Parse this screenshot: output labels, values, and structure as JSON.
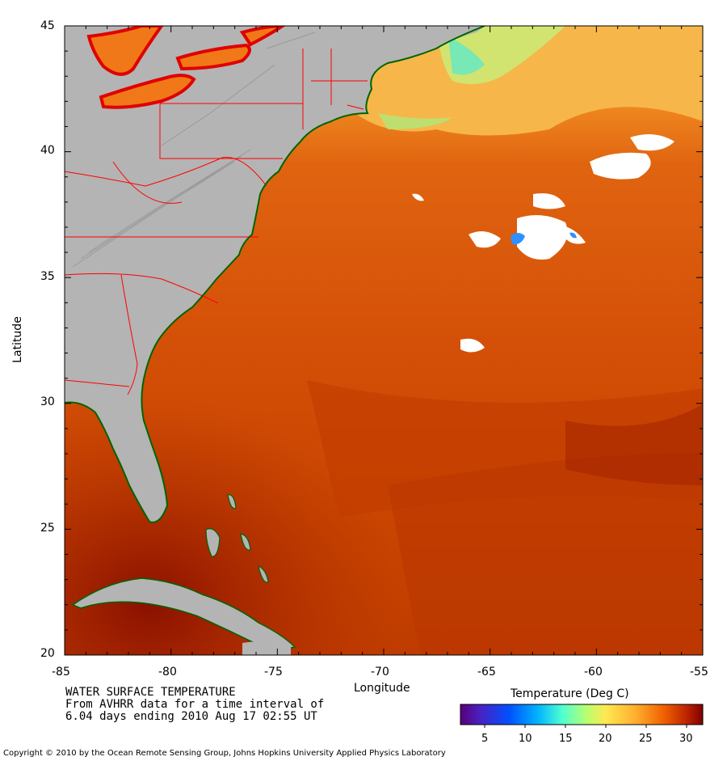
{
  "map": {
    "xlabel": "Longitude",
    "ylabel": "Latitude",
    "lon_range": [
      -85,
      -55
    ],
    "lat_range": [
      20,
      45
    ],
    "x_ticks": [
      "-85",
      "-80",
      "-75",
      "-70",
      "-65",
      "-60",
      "-55"
    ],
    "y_ticks": [
      "20",
      "25",
      "30",
      "35",
      "40",
      "45"
    ],
    "colors": {
      "land": "#b4b4b4",
      "ocean_warm": "#d04a00",
      "ocean_hot": "#9a1400",
      "ocean_cool": "#f4a93c",
      "coastline": "#006400",
      "borders": "#ff0000",
      "cloud": "#ffffff"
    }
  },
  "caption": {
    "line1": "WATER SURFACE TEMPERATURE",
    "line2": "From AVHRR data for a time interval of",
    "line3": "6.04 days ending 2010 Aug 17 02:55 UT"
  },
  "colorbar": {
    "title": "Temperature (Deg C)",
    "ticks": [
      "5",
      "10",
      "15",
      "20",
      "25",
      "30"
    ],
    "range": [
      2,
      32
    ]
  },
  "copyright": "Copyright © 2010 by the Ocean Remote Sensing Group, Johns Hopkins University Applied Physics Laboratory"
}
